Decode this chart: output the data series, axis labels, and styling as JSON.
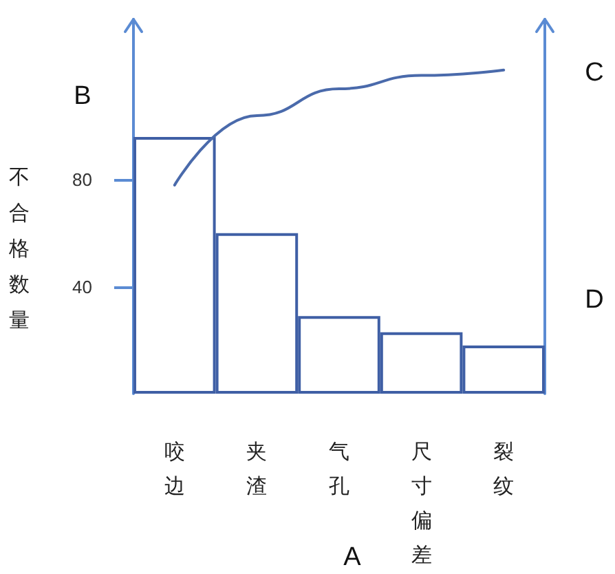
{
  "chart_data": {
    "type": "bar",
    "ylabel": "不合格数量",
    "categories": [
      "咬边",
      "夹渣",
      "气孔",
      "尺寸偏差",
      "裂纹"
    ],
    "series": [
      {
        "color": "#3f5fa5",
        "values": [
          96,
          60,
          29,
          23,
          18
        ]
      },
      {
        "type": "line",
        "color": "#4a6aab",
        "values": [
          78,
          104,
          114,
          119,
          121
        ]
      }
    ],
    "ylim": [
      0,
      140
    ],
    "yticks": [
      40,
      80
    ],
    "marker": "none",
    "annotations": [
      "B",
      "C",
      "D",
      "A"
    ]
  }
}
